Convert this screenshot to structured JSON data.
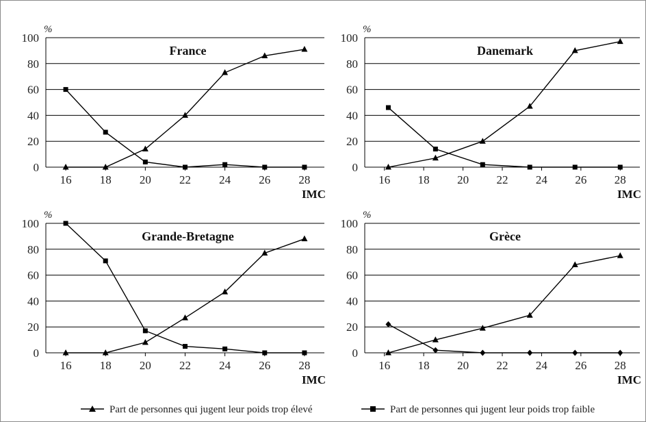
{
  "legend": {
    "high": "Part de personnes qui jugent leur poids trop élevé",
    "low": "Part de personnes qui jugent leur poids trop faible"
  },
  "chart_data": [
    {
      "type": "line",
      "title": "France",
      "ylabel": "%",
      "xlabel": "IMC",
      "ylim": [
        0,
        100
      ],
      "xlim": [
        15,
        29
      ],
      "yticks": [
        0,
        20,
        40,
        60,
        80,
        100
      ],
      "xticks": [
        16,
        18,
        20,
        22,
        24,
        26,
        28
      ],
      "series": [
        {
          "key": "high",
          "marker": "triangle",
          "x": [
            16,
            18,
            20,
            22,
            24,
            26,
            28
          ],
          "y": [
            0,
            0,
            14,
            40,
            73,
            86,
            91
          ]
        },
        {
          "key": "low",
          "marker": "square",
          "x": [
            16,
            18,
            20,
            22,
            24,
            26,
            28
          ],
          "y": [
            60,
            27,
            4,
            0,
            2,
            0,
            0
          ]
        }
      ]
    },
    {
      "type": "line",
      "title": "Danemark",
      "ylabel": "%",
      "xlabel": "IMC",
      "ylim": [
        0,
        100
      ],
      "xlim": [
        15,
        29
      ],
      "yticks": [
        0,
        20,
        40,
        60,
        80,
        100
      ],
      "xticks": [
        16,
        18,
        20,
        22,
        24,
        26,
        28
      ],
      "series": [
        {
          "key": "high",
          "marker": "triangle",
          "x": [
            16.2,
            18.6,
            21,
            23.4,
            25.7,
            28
          ],
          "y": [
            0,
            7,
            20,
            47,
            90,
            97
          ]
        },
        {
          "key": "low",
          "marker": "square",
          "x": [
            16.2,
            18.6,
            21,
            23.4,
            25.7,
            28
          ],
          "y": [
            46,
            14,
            2,
            0,
            0,
            0
          ]
        }
      ]
    },
    {
      "type": "line",
      "title": "Grande-Bretagne",
      "ylabel": "%",
      "xlabel": "IMC",
      "ylim": [
        0,
        100
      ],
      "xlim": [
        15,
        29
      ],
      "yticks": [
        0,
        20,
        40,
        60,
        80,
        100
      ],
      "xticks": [
        16,
        18,
        20,
        22,
        24,
        26,
        28
      ],
      "series": [
        {
          "key": "high",
          "marker": "triangle",
          "x": [
            16,
            18,
            20,
            22,
            24,
            26,
            28
          ],
          "y": [
            0,
            0,
            8,
            27,
            47,
            77,
            88
          ]
        },
        {
          "key": "low",
          "marker": "square",
          "x": [
            16,
            18,
            20,
            22,
            24,
            26,
            28
          ],
          "y": [
            100,
            71,
            17,
            5,
            3,
            0,
            0
          ]
        }
      ]
    },
    {
      "type": "line",
      "title": "Grèce",
      "ylabel": "%",
      "xlabel": "IMC",
      "ylim": [
        0,
        100
      ],
      "xlim": [
        15,
        29
      ],
      "yticks": [
        0,
        20,
        40,
        60,
        80,
        100
      ],
      "xticks": [
        16,
        18,
        20,
        22,
        24,
        26,
        28
      ],
      "series": [
        {
          "key": "high",
          "marker": "triangle",
          "x": [
            16.2,
            18.6,
            21,
            23.4,
            25.7,
            28
          ],
          "y": [
            0,
            10,
            19,
            29,
            68,
            75
          ]
        },
        {
          "key": "low",
          "marker": "diamond",
          "x": [
            16.2,
            18.6,
            21,
            23.4,
            25.7,
            28
          ],
          "y": [
            22,
            2,
            0,
            0,
            0,
            0
          ]
        }
      ]
    }
  ]
}
